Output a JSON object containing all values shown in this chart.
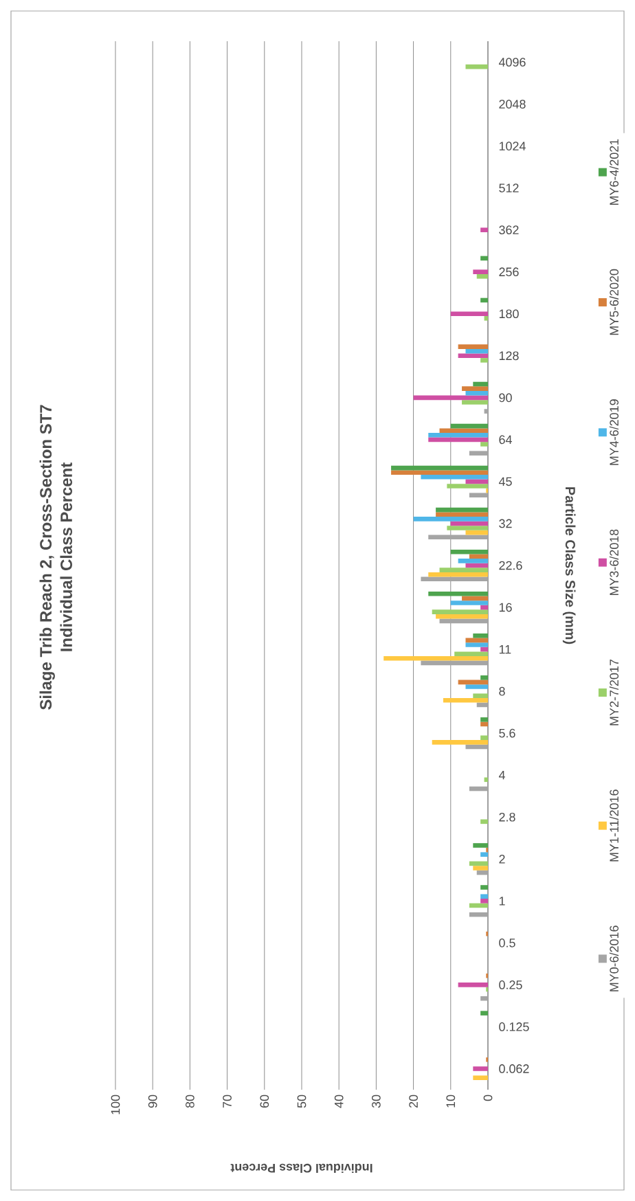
{
  "chart_data": {
    "type": "bar",
    "orientation": "horizontal",
    "title": "Silage Trib Reach 2, Cross-Section ST7",
    "subtitle": "Individual Class Percent",
    "xlabel": "Individual Class Percent",
    "ylabel": "Particle Class Size (mm)",
    "categories": [
      "4096",
      "2048",
      "1024",
      "512",
      "362",
      "256",
      "180",
      "128",
      "90",
      "64",
      "45",
      "32",
      "22.6",
      "16",
      "11",
      "8",
      "5.6",
      "4",
      "2.8",
      "2",
      "1",
      "0.5",
      "0.25",
      "0.125",
      "0.062"
    ],
    "series": [
      {
        "name": "MY0-6/2016",
        "color": "#a5a5a5",
        "values": [
          0,
          0,
          0,
          0,
          0,
          0,
          0,
          0,
          1,
          5,
          5,
          16,
          18,
          13,
          18,
          3,
          6,
          5,
          0,
          3,
          5,
          0,
          2,
          0,
          0
        ]
      },
      {
        "name": "MY1-11/2016",
        "color": "#ffc841",
        "values": [
          0,
          0,
          0,
          0,
          0,
          0,
          0,
          0,
          0,
          0,
          0.5,
          6,
          16,
          14,
          28,
          12,
          15,
          0,
          0,
          4,
          0,
          0,
          0,
          0,
          4
        ]
      },
      {
        "name": "MY2-7/2017",
        "color": "#9bd06a",
        "values": [
          6,
          0,
          0,
          0,
          0,
          3,
          1,
          2,
          7,
          2,
          11,
          11,
          13,
          15,
          9,
          4,
          2,
          1,
          2,
          5,
          5,
          0,
          0.5,
          0,
          0
        ]
      },
      {
        "name": "MY3-6/2018",
        "color": "#cf4fa3",
        "values": [
          0,
          0,
          0,
          0,
          2,
          4,
          10,
          8,
          20,
          16,
          6,
          10,
          6,
          2,
          2,
          0,
          0,
          0,
          0,
          0,
          2,
          0,
          8,
          0,
          4
        ]
      },
      {
        "name": "MY4-6/2019",
        "color": "#4fb6e8",
        "values": [
          0,
          0,
          0,
          0,
          0,
          0,
          0,
          6,
          6,
          16,
          18,
          20,
          8,
          10,
          6,
          6,
          0,
          0,
          0,
          2,
          2,
          0,
          0,
          0,
          0
        ]
      },
      {
        "name": "MY5-6/2020",
        "color": "#d7803c",
        "values": [
          0,
          0,
          0,
          0,
          0,
          0,
          0,
          8,
          7,
          13,
          26,
          14,
          5,
          7,
          6,
          8,
          2,
          0,
          0,
          0.5,
          0,
          0.5,
          0.5,
          0,
          0.5
        ]
      },
      {
        "name": "MY6-4/2021",
        "color": "#4ea44e",
        "values": [
          0,
          0,
          0,
          0,
          0,
          2,
          2,
          0,
          4,
          10,
          26,
          14,
          10,
          16,
          4,
          2,
          2,
          0,
          0,
          4,
          2,
          0,
          0,
          2,
          0
        ]
      }
    ],
    "xlim": [
      100,
      0
    ],
    "xticks": [
      0,
      10,
      20,
      30,
      40,
      50,
      60,
      70,
      80,
      90,
      100
    ],
    "grid": "x",
    "legend": "right"
  }
}
